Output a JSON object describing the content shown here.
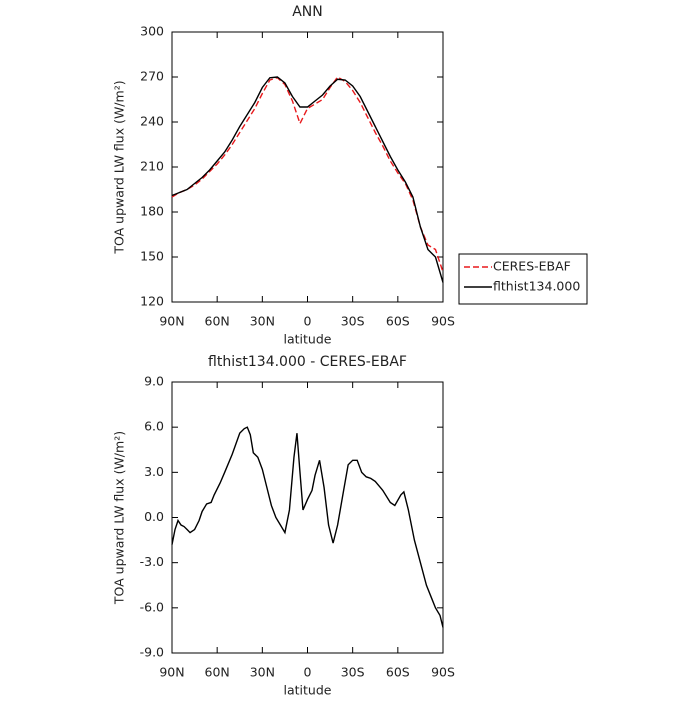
{
  "chart_data": [
    {
      "type": "line",
      "title": "ANN",
      "xlabel": "latitude",
      "ylabel": "TOA upward LW flux (W/m²)",
      "x": [
        90,
        85,
        80,
        75,
        70,
        65,
        60,
        55,
        50,
        45,
        40,
        35,
        30,
        25,
        20,
        15,
        10,
        5,
        0,
        -5,
        -10,
        -15,
        -20,
        -25,
        -30,
        -35,
        -40,
        -45,
        -50,
        -55,
        -60,
        -65,
        -70,
        -75,
        -80,
        -85,
        -90
      ],
      "series": [
        {
          "name": "CERES-EBAF",
          "color": "#e8191c",
          "dashed": true,
          "values": [
            190,
            193,
            195,
            198,
            202,
            207,
            212,
            218,
            225,
            233,
            241,
            249,
            259,
            268,
            269.5,
            265,
            254,
            239,
            249,
            252,
            255,
            263,
            270,
            267,
            261,
            253,
            243,
            233,
            224,
            214,
            206,
            199,
            188,
            170,
            158,
            155,
            140
          ]
        },
        {
          "name": "flthist134.000",
          "color": "#000000",
          "dashed": false,
          "values": [
            191,
            193,
            195,
            199,
            203,
            208,
            214,
            220,
            228,
            237,
            245,
            253,
            263,
            269.5,
            270,
            266,
            257,
            250,
            250,
            254,
            258,
            264,
            268.5,
            268,
            264,
            257,
            247,
            237,
            227,
            217,
            208,
            200,
            190,
            170,
            155,
            150,
            133
          ]
        }
      ],
      "xlim": [
        90,
        -90
      ],
      "xticks": [
        {
          "value": 90,
          "label": "90N"
        },
        {
          "value": 60,
          "label": "60N"
        },
        {
          "value": 30,
          "label": "30N"
        },
        0,
        {
          "value": -30,
          "label": "30S"
        },
        {
          "value": -60,
          "label": "60S"
        },
        {
          "value": -90,
          "label": "90S"
        }
      ],
      "ylim": [
        120,
        300
      ],
      "yticks": [
        120,
        150,
        180,
        210,
        240,
        270,
        300
      ],
      "legend": "right"
    },
    {
      "type": "line",
      "title": "flthist134.000 - CERES-EBAF",
      "xlabel": "latitude",
      "ylabel": "TOA upward LW flux (W/m²)",
      "x": [
        90,
        88,
        86,
        84,
        82,
        80,
        78,
        75,
        72,
        70,
        67,
        64,
        62,
        58,
        55,
        50,
        45,
        42,
        40,
        38,
        36,
        33,
        30,
        27,
        24,
        21,
        18,
        15,
        12,
        9,
        7,
        5,
        3,
        0,
        -3,
        -5,
        -8,
        -11,
        -14,
        -17,
        -20,
        -24,
        -27,
        -30,
        -33,
        -36,
        -39,
        -42,
        -45,
        -50,
        -55,
        -58,
        -62,
        -64,
        -67,
        -71,
        -75,
        -79,
        -83,
        -85,
        -88,
        -90
      ],
      "series": [
        {
          "color": "#000000",
          "dashed": false,
          "values": [
            -1.8,
            -0.8,
            -0.2,
            -0.5,
            -0.6,
            -0.8,
            -1.0,
            -0.8,
            -0.2,
            0.4,
            0.9,
            1.0,
            1.5,
            2.3,
            3.0,
            4.2,
            5.6,
            5.9,
            6.0,
            5.5,
            4.3,
            4.0,
            3.2,
            2.0,
            0.8,
            0.0,
            -0.5,
            -1.0,
            0.5,
            4.0,
            5.6,
            3.0,
            0.5,
            1.2,
            1.8,
            2.8,
            3.8,
            2.0,
            -0.5,
            -1.7,
            -0.5,
            1.8,
            3.5,
            3.8,
            3.8,
            3.0,
            2.7,
            2.6,
            2.4,
            1.8,
            1.0,
            0.8,
            1.5,
            1.7,
            0.5,
            -1.5,
            -3.0,
            -4.5,
            -5.5,
            -6.0,
            -6.5,
            -7.3
          ]
        }
      ],
      "xlim": [
        90,
        -90
      ],
      "xticks": [
        {
          "value": 90,
          "label": "90N"
        },
        {
          "value": 60,
          "label": "60N"
        },
        {
          "value": 30,
          "label": "30N"
        },
        0,
        {
          "value": -30,
          "label": "30S"
        },
        {
          "value": -60,
          "label": "60S"
        },
        {
          "value": -90,
          "label": "90S"
        }
      ],
      "ylim": [
        -9,
        9
      ],
      "yticks": [
        {
          "value": -9,
          "label": "-9.0"
        },
        {
          "value": -6,
          "label": "-6.0"
        },
        {
          "value": -3,
          "label": "-3.0"
        },
        {
          "value": 0,
          "label": "0.0"
        },
        {
          "value": 3,
          "label": "3.0"
        },
        {
          "value": 6,
          "label": "6.0"
        },
        {
          "value": 9,
          "label": "9.0"
        }
      ]
    }
  ]
}
